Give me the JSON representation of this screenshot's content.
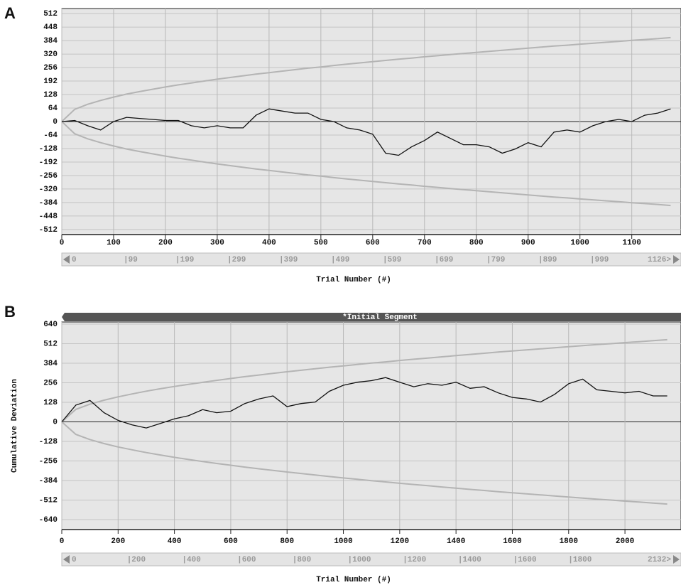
{
  "chart_data": [
    {
      "type": "line",
      "panel_label": "A",
      "x_label": "Trial Number (#)",
      "x": [
        0,
        25,
        50,
        75,
        100,
        125,
        150,
        175,
        200,
        225,
        250,
        275,
        300,
        325,
        350,
        375,
        400,
        425,
        450,
        475,
        500,
        525,
        550,
        575,
        600,
        625,
        650,
        675,
        700,
        725,
        750,
        775,
        800,
        825,
        850,
        875,
        900,
        925,
        950,
        975,
        1000,
        1025,
        1050,
        1075,
        1100,
        1125,
        1150,
        1175
      ],
      "series": [
        {
          "color": "#b4b4b4",
          "values": [
            0,
            58,
            82,
            100,
            116,
            130,
            142,
            153,
            164,
            174,
            183,
            192,
            201,
            209,
            217,
            225,
            232,
            239,
            246,
            253,
            259,
            266,
            272,
            278,
            284,
            290,
            296,
            301,
            307,
            312,
            318,
            323,
            328,
            333,
            338,
            343,
            348,
            353,
            358,
            362,
            367,
            371,
            376,
            380,
            385,
            389,
            393,
            398
          ]
        },
        {
          "color": "#b4b4b4",
          "values": [
            0,
            -58,
            -82,
            -100,
            -116,
            -130,
            -142,
            -153,
            -164,
            -174,
            -183,
            -192,
            -201,
            -209,
            -217,
            -225,
            -232,
            -239,
            -246,
            -253,
            -259,
            -266,
            -272,
            -278,
            -284,
            -290,
            -296,
            -301,
            -307,
            -312,
            -318,
            -323,
            -328,
            -333,
            -338,
            -343,
            -348,
            -353,
            -358,
            -362,
            -367,
            -371,
            -376,
            -380,
            -385,
            -389,
            -393,
            -398
          ]
        },
        {
          "color": "#111111",
          "values": [
            0,
            5,
            -20,
            -40,
            0,
            20,
            15,
            10,
            5,
            5,
            -20,
            -30,
            -20,
            -30,
            -30,
            30,
            60,
            50,
            40,
            40,
            10,
            0,
            -30,
            -40,
            -60,
            -150,
            -160,
            -120,
            -90,
            -50,
            -80,
            -110,
            -110,
            -120,
            -150,
            -130,
            -100,
            -120,
            -50,
            -40,
            -50,
            -20,
            0,
            10,
            0,
            30,
            40,
            60
          ]
        }
      ],
      "xlim": [
        0,
        1195
      ],
      "xticks": [
        0,
        100,
        200,
        300,
        400,
        500,
        600,
        700,
        800,
        900,
        1000,
        1100
      ],
      "ylim": [
        -536,
        536
      ],
      "yticks": [
        -512,
        -448,
        -384,
        -320,
        -256,
        -192,
        -128,
        -64,
        0,
        64,
        128,
        192,
        256,
        320,
        384,
        448,
        512
      ],
      "grid": true,
      "scroll_labels": [
        "0",
        "|99",
        "|199",
        "|299",
        "|399",
        "|499",
        "|599",
        "|699",
        "|799",
        "|899",
        "|999",
        "1126>"
      ]
    },
    {
      "type": "line",
      "panel_label": "B",
      "title": "*Initial Segment",
      "x_label": "Trial Number (#)",
      "y_label": "Cumulative Deviation",
      "x": [
        0,
        50,
        100,
        150,
        200,
        250,
        300,
        350,
        400,
        450,
        500,
        550,
        600,
        650,
        700,
        750,
        800,
        850,
        900,
        950,
        1000,
        1050,
        1100,
        1150,
        1200,
        1250,
        1300,
        1350,
        1400,
        1450,
        1500,
        1550,
        1600,
        1650,
        1700,
        1750,
        1800,
        1850,
        1900,
        1950,
        2000,
        2050,
        2100,
        2150
      ],
      "series": [
        {
          "color": "#b4b4b4",
          "values": [
            0,
            82,
            116,
            142,
            164,
            183,
            201,
            217,
            232,
            246,
            259,
            272,
            284,
            296,
            307,
            318,
            328,
            338,
            348,
            358,
            367,
            376,
            385,
            393,
            402,
            410,
            418,
            426,
            434,
            442,
            449,
            457,
            464,
            471,
            478,
            485,
            492,
            499,
            506,
            512,
            519,
            525,
            532,
            538
          ]
        },
        {
          "color": "#b4b4b4",
          "values": [
            0,
            -82,
            -116,
            -142,
            -164,
            -183,
            -201,
            -217,
            -232,
            -246,
            -259,
            -272,
            -284,
            -296,
            -307,
            -318,
            -328,
            -338,
            -348,
            -358,
            -367,
            -376,
            -385,
            -393,
            -402,
            -410,
            -418,
            -426,
            -434,
            -442,
            -449,
            -457,
            -464,
            -471,
            -478,
            -485,
            -492,
            -499,
            -506,
            -512,
            -519,
            -525,
            -532,
            -538
          ]
        },
        {
          "color": "#111111",
          "values": [
            0,
            110,
            140,
            60,
            10,
            -20,
            -40,
            -10,
            20,
            40,
            80,
            60,
            70,
            120,
            150,
            170,
            100,
            120,
            130,
            200,
            240,
            260,
            270,
            290,
            260,
            230,
            250,
            240,
            260,
            220,
            230,
            190,
            160,
            150,
            130,
            180,
            250,
            280,
            210,
            200,
            190,
            200,
            170,
            170
          ]
        }
      ],
      "xlim": [
        0,
        2199
      ],
      "xticks": [
        0,
        200,
        400,
        600,
        800,
        1000,
        1200,
        1400,
        1600,
        1800,
        2000
      ],
      "ylim": [
        -705,
        654
      ],
      "yticks": [
        -640,
        -512,
        -384,
        -256,
        -128,
        0,
        128,
        256,
        384,
        512,
        640
      ],
      "grid": true,
      "scroll_labels": [
        "0",
        "|200",
        "|400",
        "|600",
        "|800",
        "|1000",
        "|1200",
        "|1400",
        "|1600",
        "|1800",
        "2132>"
      ]
    }
  ]
}
